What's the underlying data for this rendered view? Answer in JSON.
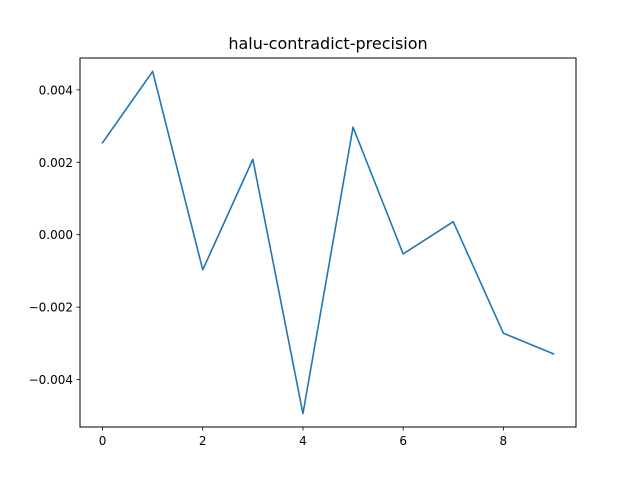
{
  "chart_data": {
    "type": "line",
    "title": "halu-contradict-precision",
    "xlabel": "",
    "ylabel": "",
    "x": [
      0,
      1,
      2,
      3,
      4,
      5,
      6,
      7,
      8,
      9
    ],
    "series": [
      {
        "values": [
          0.00254,
          0.00451,
          -0.00097,
          0.00208,
          -0.00494,
          0.00297,
          -0.00053,
          0.00036,
          -0.00272,
          -0.00329
        ],
        "color": "#1f77b4"
      }
    ],
    "xlim": [
      -0.45,
      9.45
    ],
    "ylim": [
      -0.00531,
      0.00488
    ],
    "xticks": [
      0,
      2,
      4,
      6,
      8
    ],
    "xtick_labels": [
      "0",
      "2",
      "4",
      "6",
      "8"
    ],
    "yticks": [
      -0.004,
      -0.002,
      0.0,
      0.002,
      0.004
    ],
    "ytick_labels": [
      "−0.004",
      "−0.002",
      "0.000",
      "0.002",
      "0.004"
    ],
    "grid": false,
    "legend": "none"
  }
}
